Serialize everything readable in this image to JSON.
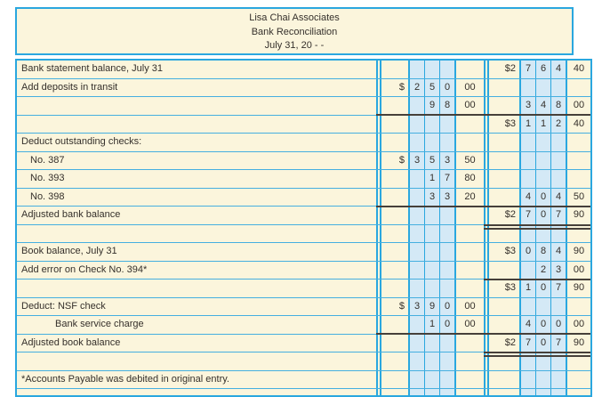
{
  "header": {
    "company": "Lisa Chai Associates",
    "title": "Bank Reconciliation",
    "date": "July 31, 20 - -"
  },
  "table": {
    "rows": [
      {
        "desc": "Bank statement balance, July 31",
        "indent": 0,
        "g1": [
          "",
          "",
          "",
          "",
          ""
        ],
        "g2": [
          "$2",
          "7",
          "6",
          "4",
          "40"
        ],
        "rule_top": "",
        "double_underline": false
      },
      {
        "desc": "Add deposits in transit",
        "indent": 0,
        "g1": [
          "$",
          "2",
          "5",
          "0",
          "00"
        ],
        "g2": [
          "",
          "",
          "",
          "",
          ""
        ],
        "rule_top": "",
        "double_underline": false
      },
      {
        "desc": "",
        "indent": 0,
        "g1": [
          "",
          "",
          "9",
          "8",
          "00"
        ],
        "g2": [
          "",
          "3",
          "4",
          "8",
          "00"
        ],
        "rule_top": "",
        "double_underline": false
      },
      {
        "desc": "",
        "indent": 0,
        "g1": [
          "",
          "",
          "",
          "",
          ""
        ],
        "g2": [
          "$3",
          "1",
          "1",
          "2",
          "40"
        ],
        "rule_top": "both",
        "double_underline": false
      },
      {
        "desc": "Deduct outstanding checks:",
        "indent": 0,
        "g1": [
          "",
          "",
          "",
          "",
          ""
        ],
        "g2": [
          "",
          "",
          "",
          "",
          ""
        ],
        "rule_top": "",
        "double_underline": false
      },
      {
        "desc": "No. 387",
        "indent": 1,
        "g1": [
          "$",
          "3",
          "5",
          "3",
          "50"
        ],
        "g2": [
          "",
          "",
          "",
          "",
          ""
        ],
        "rule_top": "",
        "double_underline": false
      },
      {
        "desc": "No. 393",
        "indent": 1,
        "g1": [
          "",
          "",
          "1",
          "7",
          "80"
        ],
        "g2": [
          "",
          "",
          "",
          "",
          ""
        ],
        "rule_top": "",
        "double_underline": false
      },
      {
        "desc": "No. 398",
        "indent": 1,
        "g1": [
          "",
          "",
          "3",
          "3",
          "20"
        ],
        "g2": [
          "",
          "4",
          "0",
          "4",
          "50"
        ],
        "rule_top": "",
        "double_underline": false
      },
      {
        "desc": "Adjusted bank balance",
        "indent": 0,
        "g1": [
          "",
          "",
          "",
          "",
          ""
        ],
        "g2": [
          "$2",
          "7",
          "0",
          "7",
          "90"
        ],
        "rule_top": "both",
        "double_underline": true
      },
      {
        "desc": "",
        "indent": 0,
        "g1": [
          "",
          "",
          "",
          "",
          ""
        ],
        "g2": [
          "",
          "",
          "",
          "",
          ""
        ],
        "rule_top": "",
        "double_underline": false
      },
      {
        "desc": "Book balance, July 31",
        "indent": 0,
        "g1": [
          "",
          "",
          "",
          "",
          ""
        ],
        "g2": [
          "$3",
          "0",
          "8",
          "4",
          "90"
        ],
        "rule_top": "",
        "double_underline": false
      },
      {
        "desc": "Add error on Check No. 394*",
        "indent": 0,
        "g1": [
          "",
          "",
          "",
          "",
          ""
        ],
        "g2": [
          "",
          "",
          "2",
          "3",
          "00"
        ],
        "rule_top": "",
        "double_underline": false
      },
      {
        "desc": "",
        "indent": 0,
        "g1": [
          "",
          "",
          "",
          "",
          ""
        ],
        "g2": [
          "$3",
          "1",
          "0",
          "7",
          "90"
        ],
        "rule_top": "g2",
        "double_underline": false
      },
      {
        "desc": "Deduct: NSF check",
        "indent": 0,
        "g1": [
          "$",
          "3",
          "9",
          "0",
          "00"
        ],
        "g2": [
          "",
          "",
          "",
          "",
          ""
        ],
        "rule_top": "",
        "double_underline": false
      },
      {
        "desc": "Bank service charge",
        "indent": 2,
        "g1": [
          "",
          "",
          "1",
          "0",
          "00"
        ],
        "g2": [
          "",
          "4",
          "0",
          "0",
          "00"
        ],
        "rule_top": "",
        "double_underline": false
      },
      {
        "desc": "Adjusted book balance",
        "indent": 0,
        "g1": [
          "",
          "",
          "",
          "",
          ""
        ],
        "g2": [
          "$2",
          "7",
          "0",
          "7",
          "90"
        ],
        "rule_top": "both",
        "double_underline": true
      },
      {
        "desc": "",
        "indent": 0,
        "g1": [
          "",
          "",
          "",
          "",
          ""
        ],
        "g2": [
          "",
          "",
          "",
          "",
          ""
        ],
        "rule_top": "",
        "double_underline": false
      },
      {
        "desc": "*Accounts Payable was debited in original entry.",
        "indent": 0,
        "g1": [
          "",
          "",
          "",
          "",
          ""
        ],
        "g2": [
          "",
          "",
          "",
          "",
          ""
        ],
        "rule_top": "",
        "double_underline": false
      },
      {
        "desc": "",
        "indent": 0,
        "g1": [
          "",
          "",
          "",
          "",
          ""
        ],
        "g2": [
          "",
          "",
          "",
          "",
          ""
        ],
        "rule_top": "",
        "double_underline": false
      }
    ]
  },
  "colors": {
    "grid_cyan": "#2AA7DF",
    "row_line": "#45AFE0",
    "paper_cream": "#FBF5DC",
    "cell_blue": "#D4E9F6",
    "rule_dark": "#46403A",
    "text_dark": "#35302B"
  }
}
